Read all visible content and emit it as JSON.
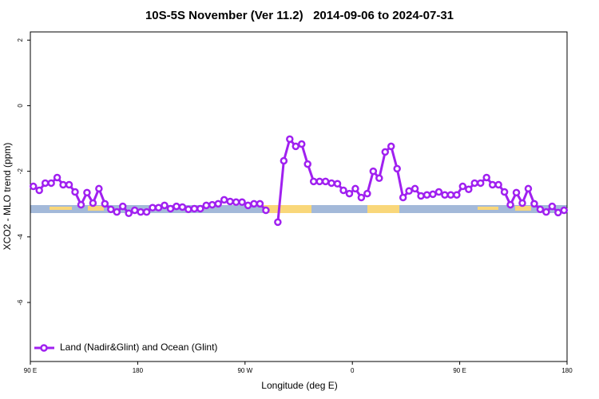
{
  "chart_data": {
    "type": "line",
    "title": "10S-5S November (Ver 11.2)   2014-09-06 to 2024-07-31",
    "x_label": "Longitude (deg E)",
    "y_label": "XCO2 - MLO trend (ppm)",
    "xlim": [
      90,
      540
    ],
    "ylim": [
      -7.8,
      2.25
    ],
    "xticks": [
      {
        "value": 90,
        "label": "90 E"
      },
      180,
      {
        "value": 270,
        "label": "90 W"
      },
      {
        "value": 360,
        "label": "0"
      },
      {
        "value": 450,
        "label": "90 E"
      },
      {
        "value": 540,
        "label": "180"
      }
    ],
    "yticks": [
      2,
      0,
      -2,
      -4,
      -6
    ],
    "legend": "bottom-left",
    "x": [
      92.5,
      97.5,
      102.5,
      107.5,
      112.5,
      117.5,
      122.5,
      127.5,
      132.5,
      137.5,
      142.5,
      147.5,
      152.5,
      157.5,
      162.5,
      167.5,
      172.5,
      177.5,
      182.5,
      187.5,
      192.5,
      197.5,
      202.5,
      207.5,
      212.5,
      217.5,
      222.5,
      227.5,
      232.5,
      237.5,
      242.5,
      247.5,
      252.5,
      257.5,
      262.5,
      267.5,
      272.5,
      277.5,
      282.5,
      287.5,
      292.5,
      297.5,
      302.5,
      307.5,
      312.5,
      317.5,
      322.5,
      327.5,
      332.5,
      337.5,
      342.5,
      347.5,
      352.5,
      357.5,
      362.5,
      367.5,
      372.5,
      377.5,
      382.5,
      387.5,
      392.5,
      397.5,
      402.5,
      407.5,
      412.5,
      417.5,
      422.5,
      427.5,
      432.5,
      437.5,
      442.5,
      447.5,
      452.5,
      457.5,
      462.5,
      467.5,
      472.5,
      477.5,
      482.5,
      487.5,
      492.5,
      497.5,
      502.5,
      507.5,
      512.5,
      517.5,
      522.5,
      527.5,
      532.5,
      537.5
    ],
    "series": [
      {
        "name": "Land (Nadir&Glint) and Ocean (Glint)",
        "color": "#a020f0",
        "values": [
          -2.46,
          -2.58,
          -2.36,
          -2.36,
          -2.19,
          -2.41,
          -2.41,
          -2.63,
          -3.02,
          -2.65,
          -2.97,
          -2.53,
          -2.99,
          -3.16,
          -3.24,
          -3.07,
          -3.28,
          -3.19,
          -3.24,
          -3.24,
          -3.11,
          -3.11,
          -3.04,
          -3.14,
          -3.07,
          -3.09,
          -3.16,
          -3.14,
          -3.14,
          -3.04,
          -3.02,
          -2.99,
          -2.87,
          -2.92,
          -2.94,
          -2.94,
          -3.04,
          -2.99,
          -2.99,
          -3.19,
          null,
          -3.55,
          -1.68,
          -1.02,
          -1.24,
          -1.17,
          -1.78,
          -2.31,
          -2.31,
          -2.31,
          -2.36,
          -2.38,
          -2.58,
          -2.68,
          -2.53,
          -2.8,
          -2.68,
          -2.0,
          -2.21,
          -1.41,
          -1.24,
          -1.92,
          -2.8,
          -2.6,
          -2.53,
          -2.75,
          -2.72,
          -2.7,
          -2.63,
          -2.72,
          -2.72,
          -2.72,
          -2.46,
          -2.55,
          -2.36,
          -2.36,
          -2.19,
          -2.41,
          -2.41,
          -2.63,
          -3.02,
          -2.65,
          -2.97,
          -2.53,
          -2.99,
          -3.16,
          -3.24,
          -3.07,
          -3.26,
          -3.19
        ]
      }
    ]
  }
}
